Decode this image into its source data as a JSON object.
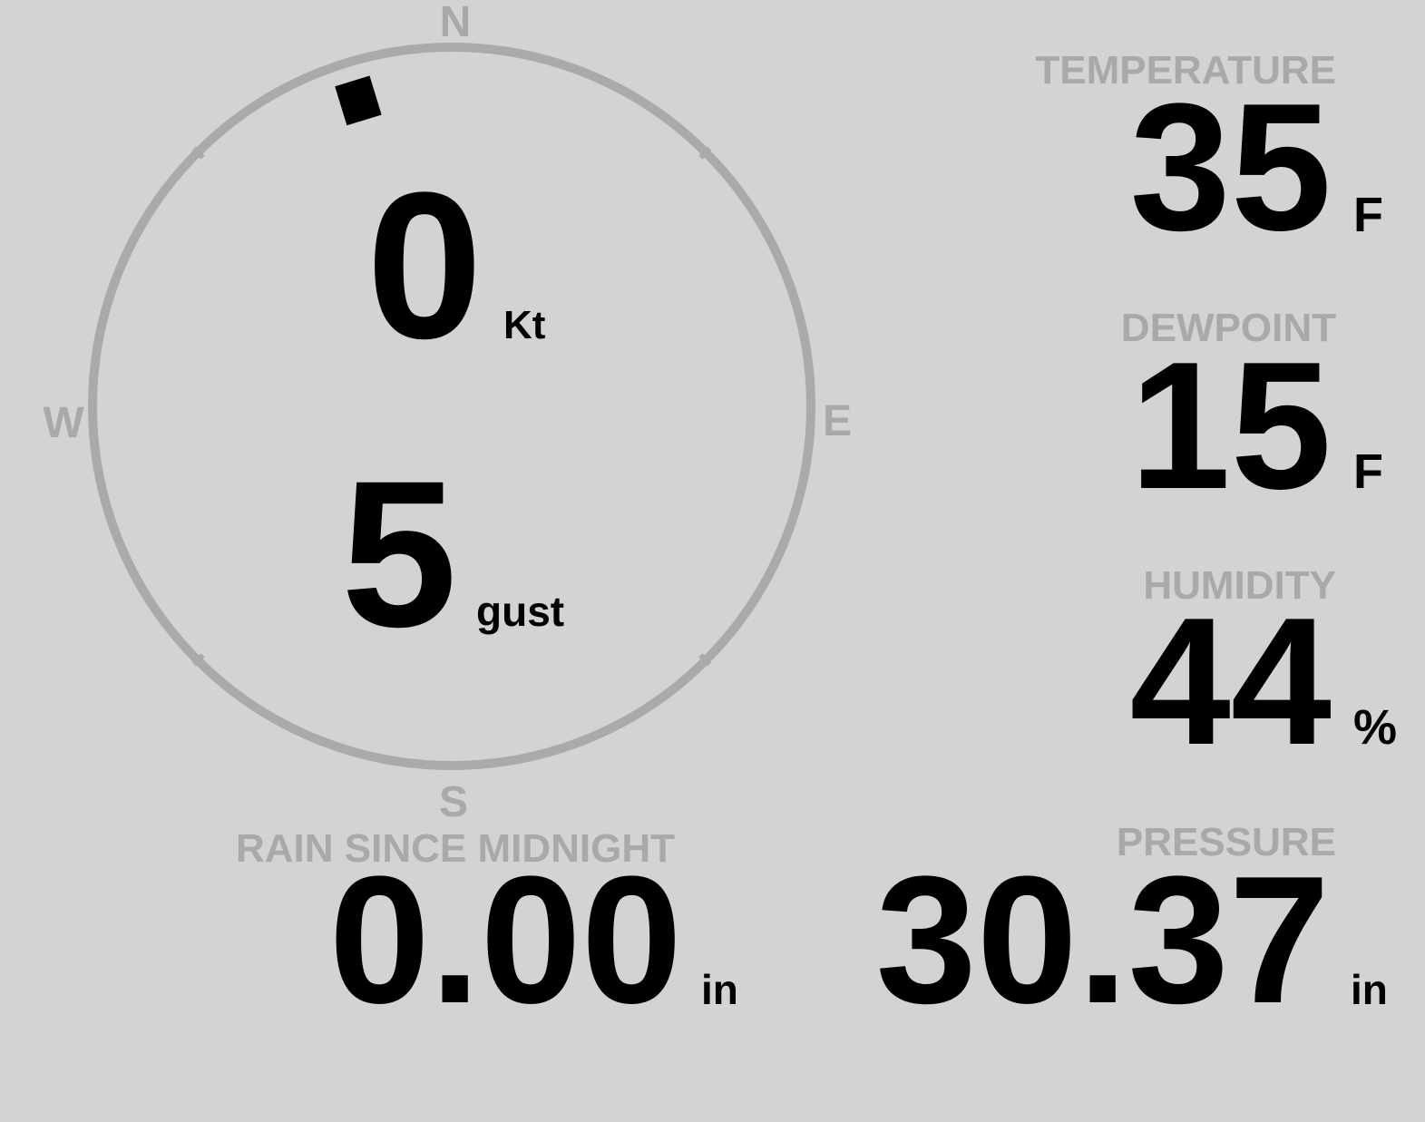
{
  "colors": {
    "background": "#d3d3d3",
    "label": "#a9a9a9",
    "value": "#000000",
    "compass_ring": "#aaaaaa"
  },
  "wind": {
    "cardinals": {
      "n": "N",
      "e": "E",
      "s": "S",
      "w": "W"
    },
    "direction_deg": 343,
    "speed": "0",
    "speed_unit": "Kt",
    "gust": "5",
    "gust_unit": "gust"
  },
  "temperature": {
    "label": "TEMPERATURE",
    "value": "35",
    "unit": "F"
  },
  "dewpoint": {
    "label": "DEWPOINT",
    "value": "15",
    "unit": "F"
  },
  "humidity": {
    "label": "HUMIDITY",
    "value": "44",
    "unit": "%"
  },
  "pressure": {
    "label": "PRESSURE",
    "value": "30.37",
    "unit": "in"
  },
  "rain": {
    "label": "RAIN SINCE MIDNIGHT",
    "value": "0.00",
    "unit": "in"
  }
}
